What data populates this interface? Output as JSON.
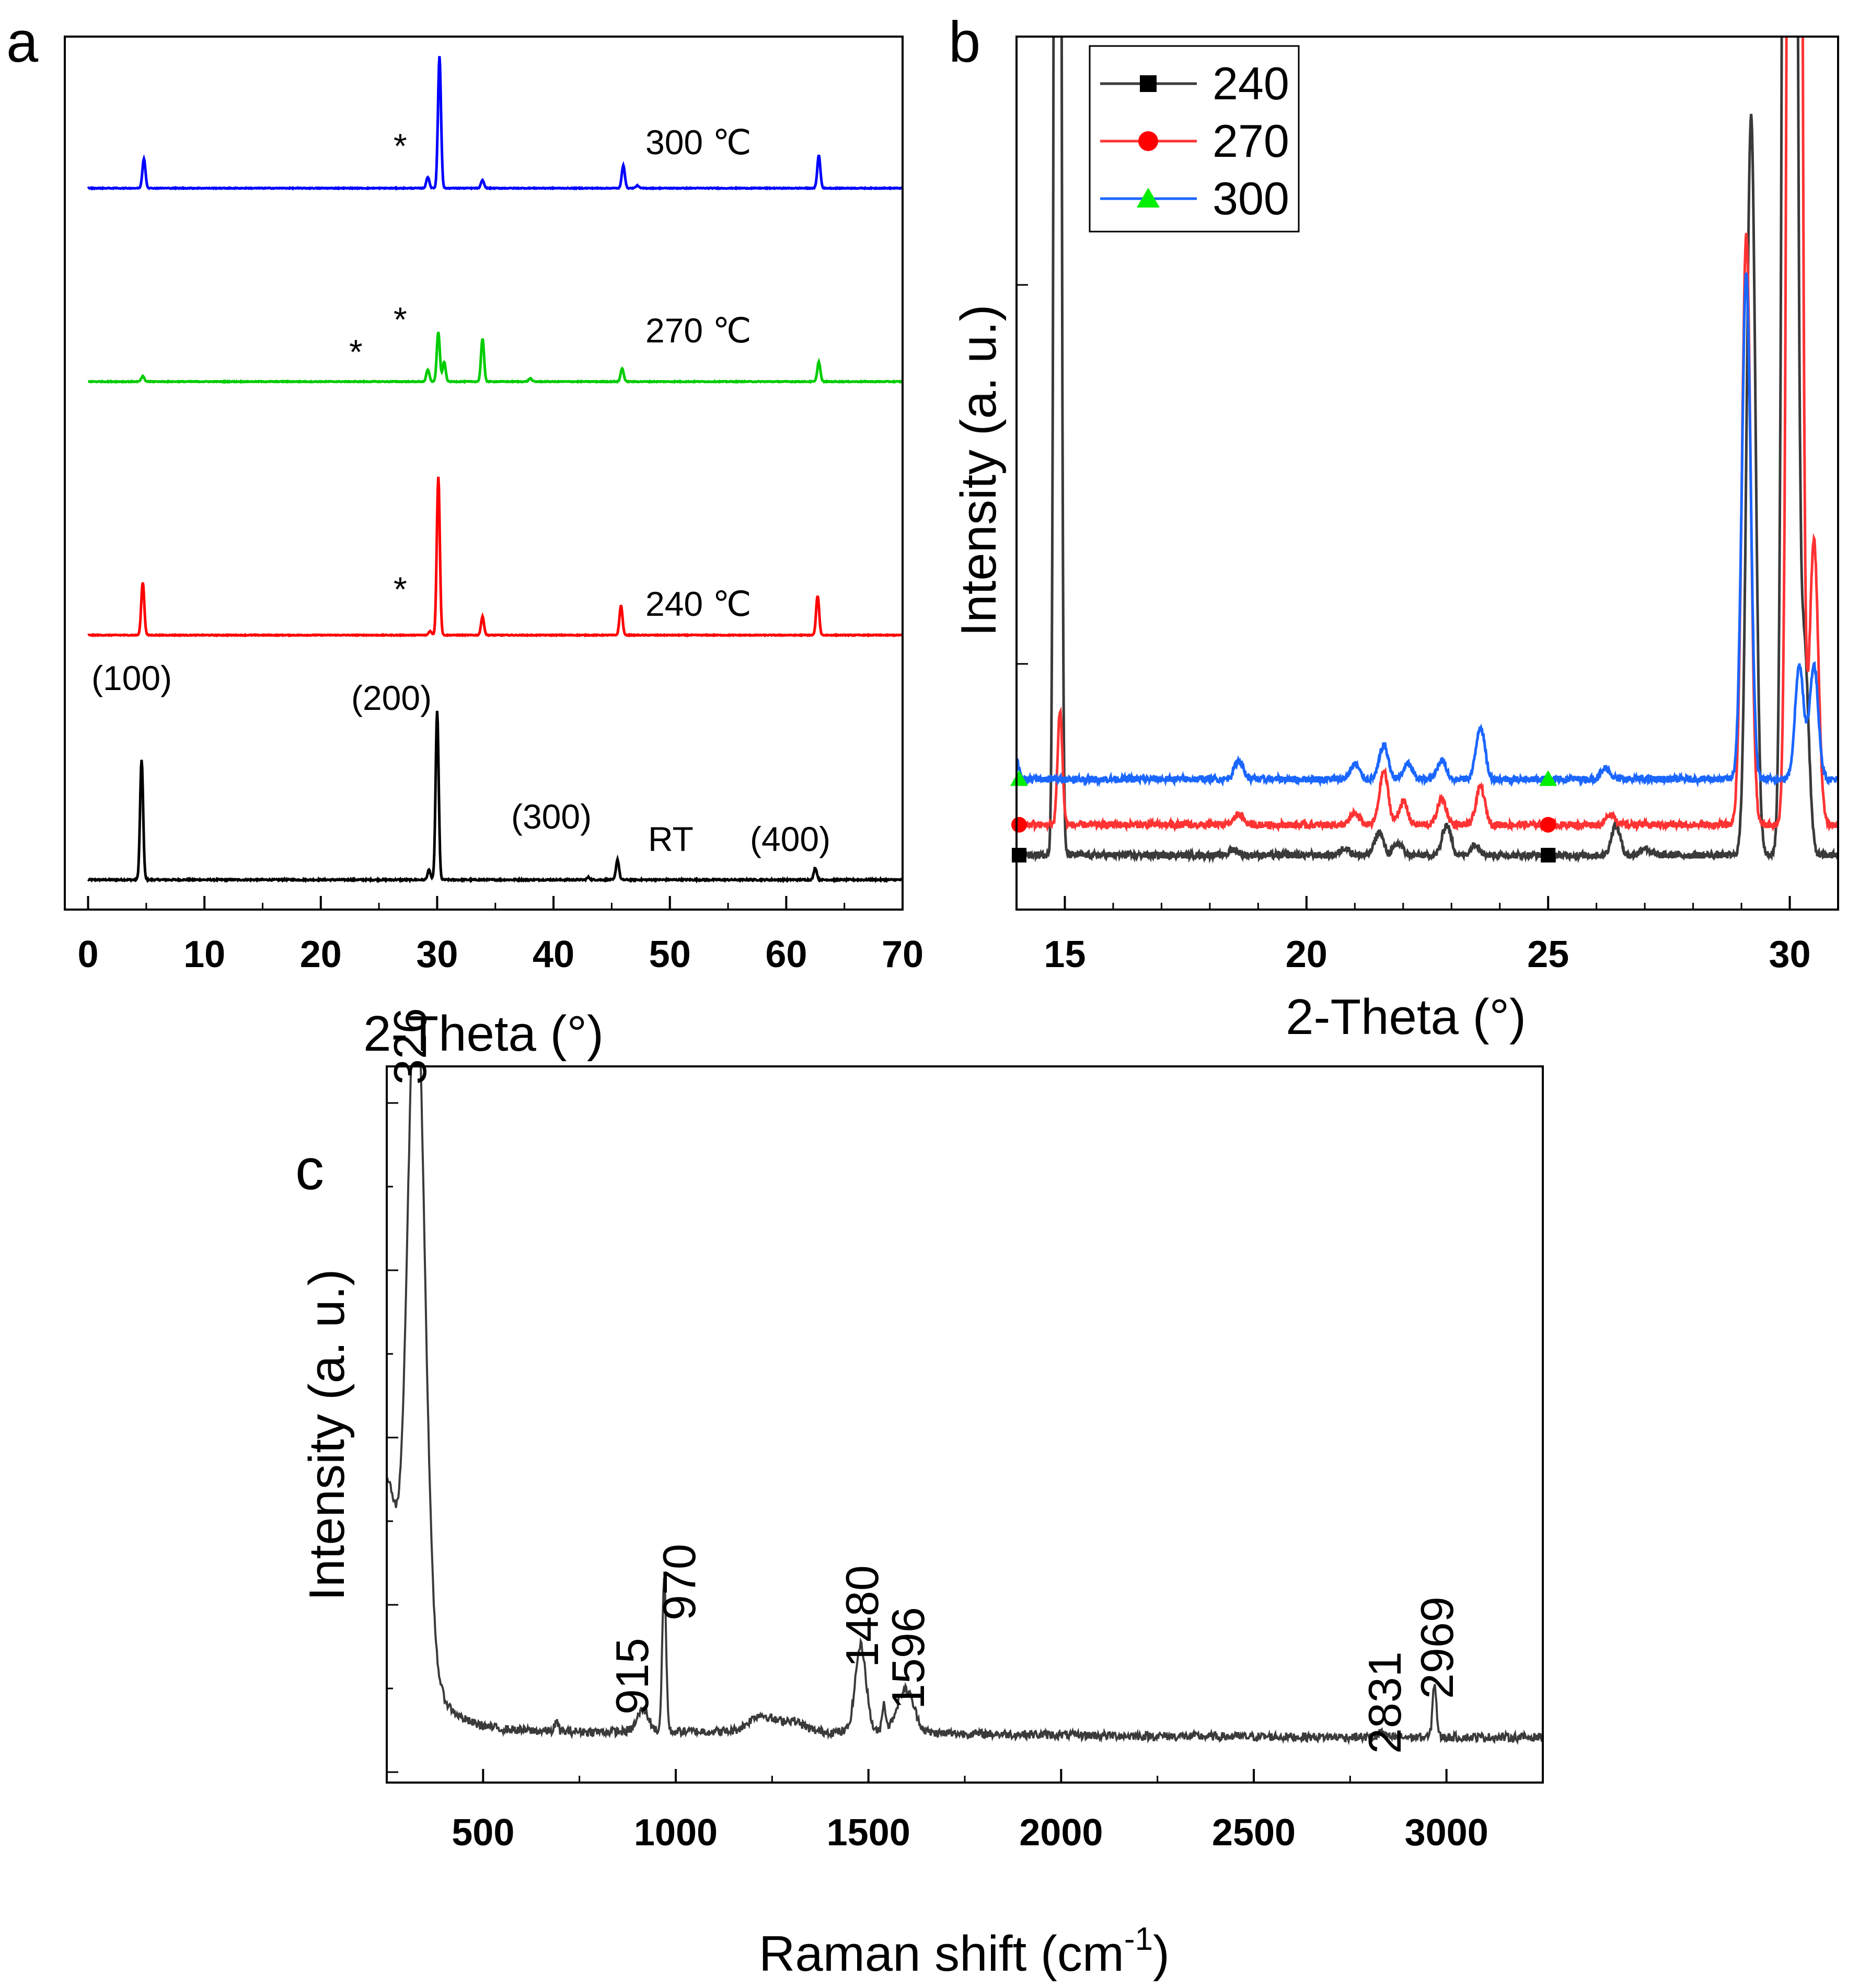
{
  "chart_data": [
    {
      "type": "line",
      "panel_label": "a",
      "xlabel": "2-Theta (°)",
      "ylabel": "",
      "xlim": [
        -2,
        70
      ],
      "xticks": [
        0,
        10,
        20,
        30,
        40,
        50,
        60,
        70
      ],
      "series": [
        {
          "name": "RT",
          "label": "RT",
          "color": "#000000",
          "offset": 0.0,
          "scale": 1.0,
          "peaks": [
            [
              4.6,
              1.0
            ],
            [
              29.3,
              0.08
            ],
            [
              30.0,
              1.4
            ],
            [
              43.0,
              0.02
            ],
            [
              45.5,
              0.17
            ],
            [
              62.5,
              0.1
            ]
          ],
          "hkl": [
            {
              "x": 4.6,
              "text": "(100)"
            },
            {
              "x": 30.0,
              "text": "(200)"
            },
            {
              "x": 45.5,
              "text": "(300)"
            },
            {
              "x": 62.5,
              "text": "(400)"
            }
          ]
        },
        {
          "name": "240 ℃",
          "label": "240 ℃",
          "color": "#ff0000",
          "offset": 1.45,
          "scale": 0.55,
          "peaks": [
            [
              4.7,
              0.8
            ],
            [
              29.4,
              0.06
            ],
            [
              30.1,
              2.4
            ],
            [
              33.9,
              0.28
            ],
            [
              45.8,
              0.45
            ],
            [
              62.7,
              0.6
            ]
          ],
          "stars": [
            33.9
          ]
        },
        {
          "name": "270 ℃",
          "label": "270 ℃",
          "color": "#00cc00",
          "offset": 3.0,
          "scale": 0.55,
          "peaks": [
            [
              4.7,
              0.08
            ],
            [
              29.2,
              0.18
            ],
            [
              30.1,
              0.75
            ],
            [
              30.6,
              0.3
            ],
            [
              33.9,
              0.65
            ],
            [
              38.0,
              0.05
            ],
            [
              45.9,
              0.2
            ],
            [
              62.8,
              0.3
            ]
          ],
          "stars": [
            30.6,
            33.9
          ]
        },
        {
          "name": "300 ℃",
          "label": "300 ℃",
          "color": "#0000ff",
          "offset": 4.15,
          "scale": 0.55,
          "peaks": [
            [
              4.8,
              0.45
            ],
            [
              29.2,
              0.17
            ],
            [
              30.2,
              2.0
            ],
            [
              33.9,
              0.12
            ],
            [
              46.0,
              0.35
            ],
            [
              47.2,
              0.04
            ],
            [
              62.8,
              0.5
            ]
          ],
          "stars": [
            33.9
          ]
        }
      ]
    },
    {
      "type": "line",
      "panel_label": "b",
      "xlabel": "2-Theta (°)",
      "ylabel": "Intensity (a. u.)",
      "xlim": [
        14,
        31
      ],
      "xticks": [
        15,
        20,
        25,
        30
      ],
      "legend": [
        "240",
        "270",
        "300"
      ],
      "series": [
        {
          "name": "240",
          "color": "#3a3a3a",
          "marker": "square",
          "marker_color": "#000000",
          "baseline": 0.04,
          "peaks": [
            [
              14.85,
              9.0
            ],
            [
              18.5,
              0.015
            ],
            [
              20.8,
              0.02
            ],
            [
              21.5,
              0.06
            ],
            [
              21.9,
              0.03
            ],
            [
              22.9,
              0.08
            ],
            [
              23.5,
              0.03
            ],
            [
              26.4,
              0.08
            ],
            [
              27.0,
              0.02
            ],
            [
              29.2,
              1.95
            ],
            [
              30.0,
              12.0
            ],
            [
              30.3,
              0.55
            ]
          ]
        },
        {
          "name": "270",
          "color": "#ff3333",
          "marker": "circle",
          "marker_color": "#ff0000",
          "baseline": 0.12,
          "peaks": [
            [
              14.9,
              0.3
            ],
            [
              18.6,
              0.03
            ],
            [
              21.0,
              0.03
            ],
            [
              21.6,
              0.14
            ],
            [
              22.0,
              0.06
            ],
            [
              22.8,
              0.07
            ],
            [
              23.6,
              0.1
            ],
            [
              26.3,
              0.03
            ],
            [
              29.1,
              1.55
            ],
            [
              30.1,
              12.0
            ],
            [
              30.5,
              0.75
            ]
          ]
        },
        {
          "name": "300",
          "color": "#1a66ff",
          "marker": "triangle",
          "marker_color": "#00ee00",
          "baseline": 0.24,
          "peaks": [
            [
              14.0,
              0.05
            ],
            [
              18.6,
              0.05
            ],
            [
              21.0,
              0.04
            ],
            [
              21.6,
              0.09
            ],
            [
              22.1,
              0.04
            ],
            [
              22.8,
              0.05
            ],
            [
              23.6,
              0.14
            ],
            [
              26.2,
              0.03
            ],
            [
              29.1,
              1.33
            ],
            [
              30.2,
              0.3
            ],
            [
              30.5,
              0.3
            ]
          ]
        }
      ]
    },
    {
      "type": "line",
      "panel_label": "c",
      "xlabel": "Raman shift (cm",
      "xlabel_sup": "-1",
      "xlabel_end": ")",
      "ylabel": "Intensity (a. u.)",
      "xlim": [
        250,
        3250
      ],
      "xticks": [
        500,
        1000,
        1500,
        2000,
        2500,
        3000
      ],
      "series": [
        {
          "name": "Raman",
          "color": "#3a3a3a",
          "peaks": [
            [
              326,
              0.62
            ],
            [
              690,
              0.008
            ],
            [
              915,
              0.02
            ],
            [
              970,
              0.14
            ],
            [
              1220,
              0.015
            ],
            [
              1300,
              0.01
            ],
            [
              1480,
              0.08
            ],
            [
              1540,
              0.025
            ],
            [
              1596,
              0.04
            ],
            [
              2831,
              0.006
            ],
            [
              2969,
              0.05
            ]
          ]
        }
      ],
      "peak_labels": [
        "326",
        "915",
        "970",
        "1480",
        "1596",
        "2831",
        "2969"
      ]
    }
  ],
  "panel_a": {
    "labels": {
      "rt": "RT",
      "t240": "240 ℃",
      "t270": "270 ℃",
      "t300": "300 ℃"
    },
    "hkl": {
      "h100": "(100)",
      "h200": "(200)",
      "h300": "(300)",
      "h400": "(400)"
    },
    "star": "*"
  }
}
